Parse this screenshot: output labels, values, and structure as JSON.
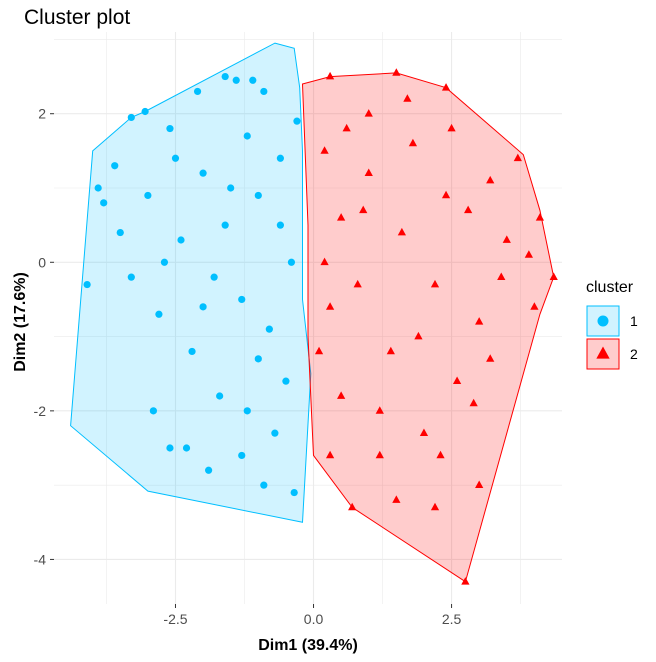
{
  "chart_data": {
    "type": "scatter",
    "title": "Cluster plot",
    "xlabel": "Dim1 (39.4%)",
    "ylabel": "Dim2 (17.6%)",
    "xlim": [
      -4.7,
      4.5
    ],
    "ylim": [
      -4.6,
      3.1
    ],
    "x_ticks": [
      -2.5,
      0.0,
      2.5
    ],
    "x_tick_labels": [
      "-2.5",
      "0.0",
      "2.5"
    ],
    "y_ticks": [
      -4,
      -2,
      0,
      2
    ],
    "y_tick_labels": [
      "-4",
      "-2",
      "0",
      "2"
    ],
    "grid": true,
    "legend": {
      "title": "cluster",
      "placement": "right",
      "entries": [
        "1",
        "2"
      ]
    },
    "series": [
      {
        "name": "1",
        "color": "#00BFFF",
        "marker": "circle",
        "hull": [
          [
            -0.7,
            2.95
          ],
          [
            -0.35,
            2.88
          ],
          [
            -0.25,
            2.35
          ],
          [
            -0.2,
            1.5
          ],
          [
            -0.2,
            -0.5
          ],
          [
            -0.05,
            -1.5
          ],
          [
            -0.2,
            -3.5
          ],
          [
            -3.0,
            -3.08
          ],
          [
            -4.4,
            -2.2
          ],
          [
            -4.0,
            1.5
          ],
          [
            -3.3,
            1.95
          ],
          [
            -3.05,
            2.03
          ]
        ],
        "points": [
          [
            -3.3,
            1.95
          ],
          [
            -3.05,
            2.03
          ],
          [
            -3.9,
            1.0
          ],
          [
            -3.8,
            0.8
          ],
          [
            -4.1,
            -0.3
          ],
          [
            -3.5,
            0.4
          ],
          [
            -3.3,
            -0.2
          ],
          [
            -2.9,
            -2.0
          ],
          [
            -2.6,
            -2.5
          ],
          [
            -2.3,
            -2.5
          ],
          [
            -1.9,
            -2.8
          ],
          [
            -1.3,
            -2.6
          ],
          [
            -0.9,
            -3.0
          ],
          [
            -0.35,
            -3.1
          ],
          [
            -2.6,
            1.8
          ],
          [
            -2.1,
            2.3
          ],
          [
            -1.6,
            2.5
          ],
          [
            -1.4,
            2.45
          ],
          [
            -1.1,
            2.45
          ],
          [
            -0.9,
            2.3
          ],
          [
            -2.0,
            1.2
          ],
          [
            -1.5,
            1.0
          ],
          [
            -1.0,
            0.9
          ],
          [
            -0.6,
            0.5
          ],
          [
            -2.4,
            0.3
          ],
          [
            -1.8,
            -0.2
          ],
          [
            -1.3,
            -0.5
          ],
          [
            -0.8,
            -0.9
          ],
          [
            -0.5,
            -1.6
          ],
          [
            -2.2,
            -1.2
          ],
          [
            -1.7,
            -1.8
          ],
          [
            -1.2,
            -2.0
          ],
          [
            -0.7,
            -2.3
          ],
          [
            -3.0,
            0.9
          ],
          [
            -2.8,
            -0.7
          ],
          [
            -2.5,
            1.4
          ],
          [
            -0.3,
            1.9
          ],
          [
            -0.4,
            0.0
          ],
          [
            -1.0,
            -1.3
          ],
          [
            -1.6,
            0.5
          ],
          [
            -2.0,
            -0.6
          ],
          [
            -0.6,
            1.4
          ],
          [
            -1.2,
            1.7
          ],
          [
            -2.7,
            0.0
          ],
          [
            -3.6,
            1.3
          ]
        ]
      },
      {
        "name": "2",
        "color": "#FF0000",
        "marker": "triangle",
        "hull": [
          [
            -0.2,
            2.4
          ],
          [
            0.3,
            2.5
          ],
          [
            1.5,
            2.55
          ],
          [
            2.4,
            2.35
          ],
          [
            3.8,
            1.45
          ],
          [
            4.1,
            0.7
          ],
          [
            4.35,
            -0.2
          ],
          [
            4.1,
            -0.7
          ],
          [
            2.75,
            -4.3
          ],
          [
            0.7,
            -3.3
          ],
          [
            0.0,
            -2.6
          ],
          [
            -0.1,
            -1.0
          ],
          [
            -0.1,
            0.5
          ]
        ],
        "points": [
          [
            0.3,
            2.5
          ],
          [
            1.5,
            2.55
          ],
          [
            2.4,
            2.35
          ],
          [
            3.7,
            1.4
          ],
          [
            4.1,
            0.6
          ],
          [
            4.35,
            -0.2
          ],
          [
            4.0,
            -0.6
          ],
          [
            3.0,
            -3.0
          ],
          [
            2.75,
            -4.3
          ],
          [
            2.2,
            -3.3
          ],
          [
            1.5,
            -3.2
          ],
          [
            0.7,
            -3.3
          ],
          [
            0.3,
            -2.6
          ],
          [
            1.0,
            2.0
          ],
          [
            1.8,
            1.6
          ],
          [
            2.5,
            1.8
          ],
          [
            3.2,
            1.1
          ],
          [
            3.5,
            0.3
          ],
          [
            3.0,
            -0.8
          ],
          [
            2.6,
            -1.6
          ],
          [
            2.0,
            -2.3
          ],
          [
            1.2,
            -2.6
          ],
          [
            0.5,
            -1.8
          ],
          [
            0.3,
            -0.6
          ],
          [
            0.5,
            0.6
          ],
          [
            1.0,
            1.2
          ],
          [
            1.6,
            0.4
          ],
          [
            2.2,
            -0.3
          ],
          [
            2.8,
            0.7
          ],
          [
            1.4,
            -1.2
          ],
          [
            0.8,
            -0.3
          ],
          [
            0.2,
            1.5
          ],
          [
            0.2,
            0.0
          ],
          [
            3.4,
            -0.2
          ],
          [
            2.4,
            0.9
          ],
          [
            1.9,
            -1.0
          ],
          [
            0.6,
            1.8
          ],
          [
            1.2,
            -2.0
          ],
          [
            2.9,
            -1.9
          ],
          [
            0.1,
            -1.2
          ],
          [
            3.9,
            0.1
          ],
          [
            1.7,
            2.2
          ],
          [
            2.3,
            -2.6
          ],
          [
            3.2,
            -1.3
          ],
          [
            0.9,
            0.7
          ]
        ]
      }
    ]
  }
}
